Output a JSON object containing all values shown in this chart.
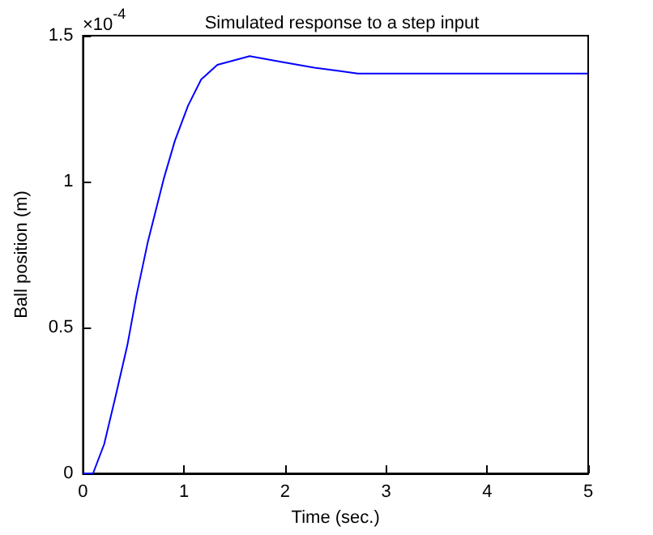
{
  "chart_data": {
    "type": "line",
    "title": "Simulated response to a step input",
    "xlabel": "Time (sec.)",
    "ylabel": "Ball position (m)",
    "annotations": [
      "×10$^{-4}$"
    ],
    "xlim": [
      0,
      5
    ],
    "xticks": [
      0,
      1,
      2,
      3,
      4,
      5
    ],
    "ylim": [
      0,
      1.5
    ],
    "yticks": [
      0,
      0.5,
      1,
      1.5
    ],
    "grid": false,
    "marker": "none",
    "line_style": "solid",
    "series": [
      {
        "color": "#0000ff",
        "x": [
          0,
          0.1,
          0.21,
          0.32,
          0.44,
          0.53,
          0.64,
          0.8,
          0.91,
          1.04,
          1.17,
          1.33,
          1.65,
          1.97,
          2.29,
          2.52,
          2.72,
          5
        ],
        "values": [
          0,
          0,
          0.1,
          0.26,
          0.44,
          0.61,
          0.79,
          1.01,
          1.14,
          1.26,
          1.35,
          1.4,
          1.43,
          1.41,
          1.39,
          1.38,
          1.37,
          1.37
        ]
      }
    ]
  }
}
